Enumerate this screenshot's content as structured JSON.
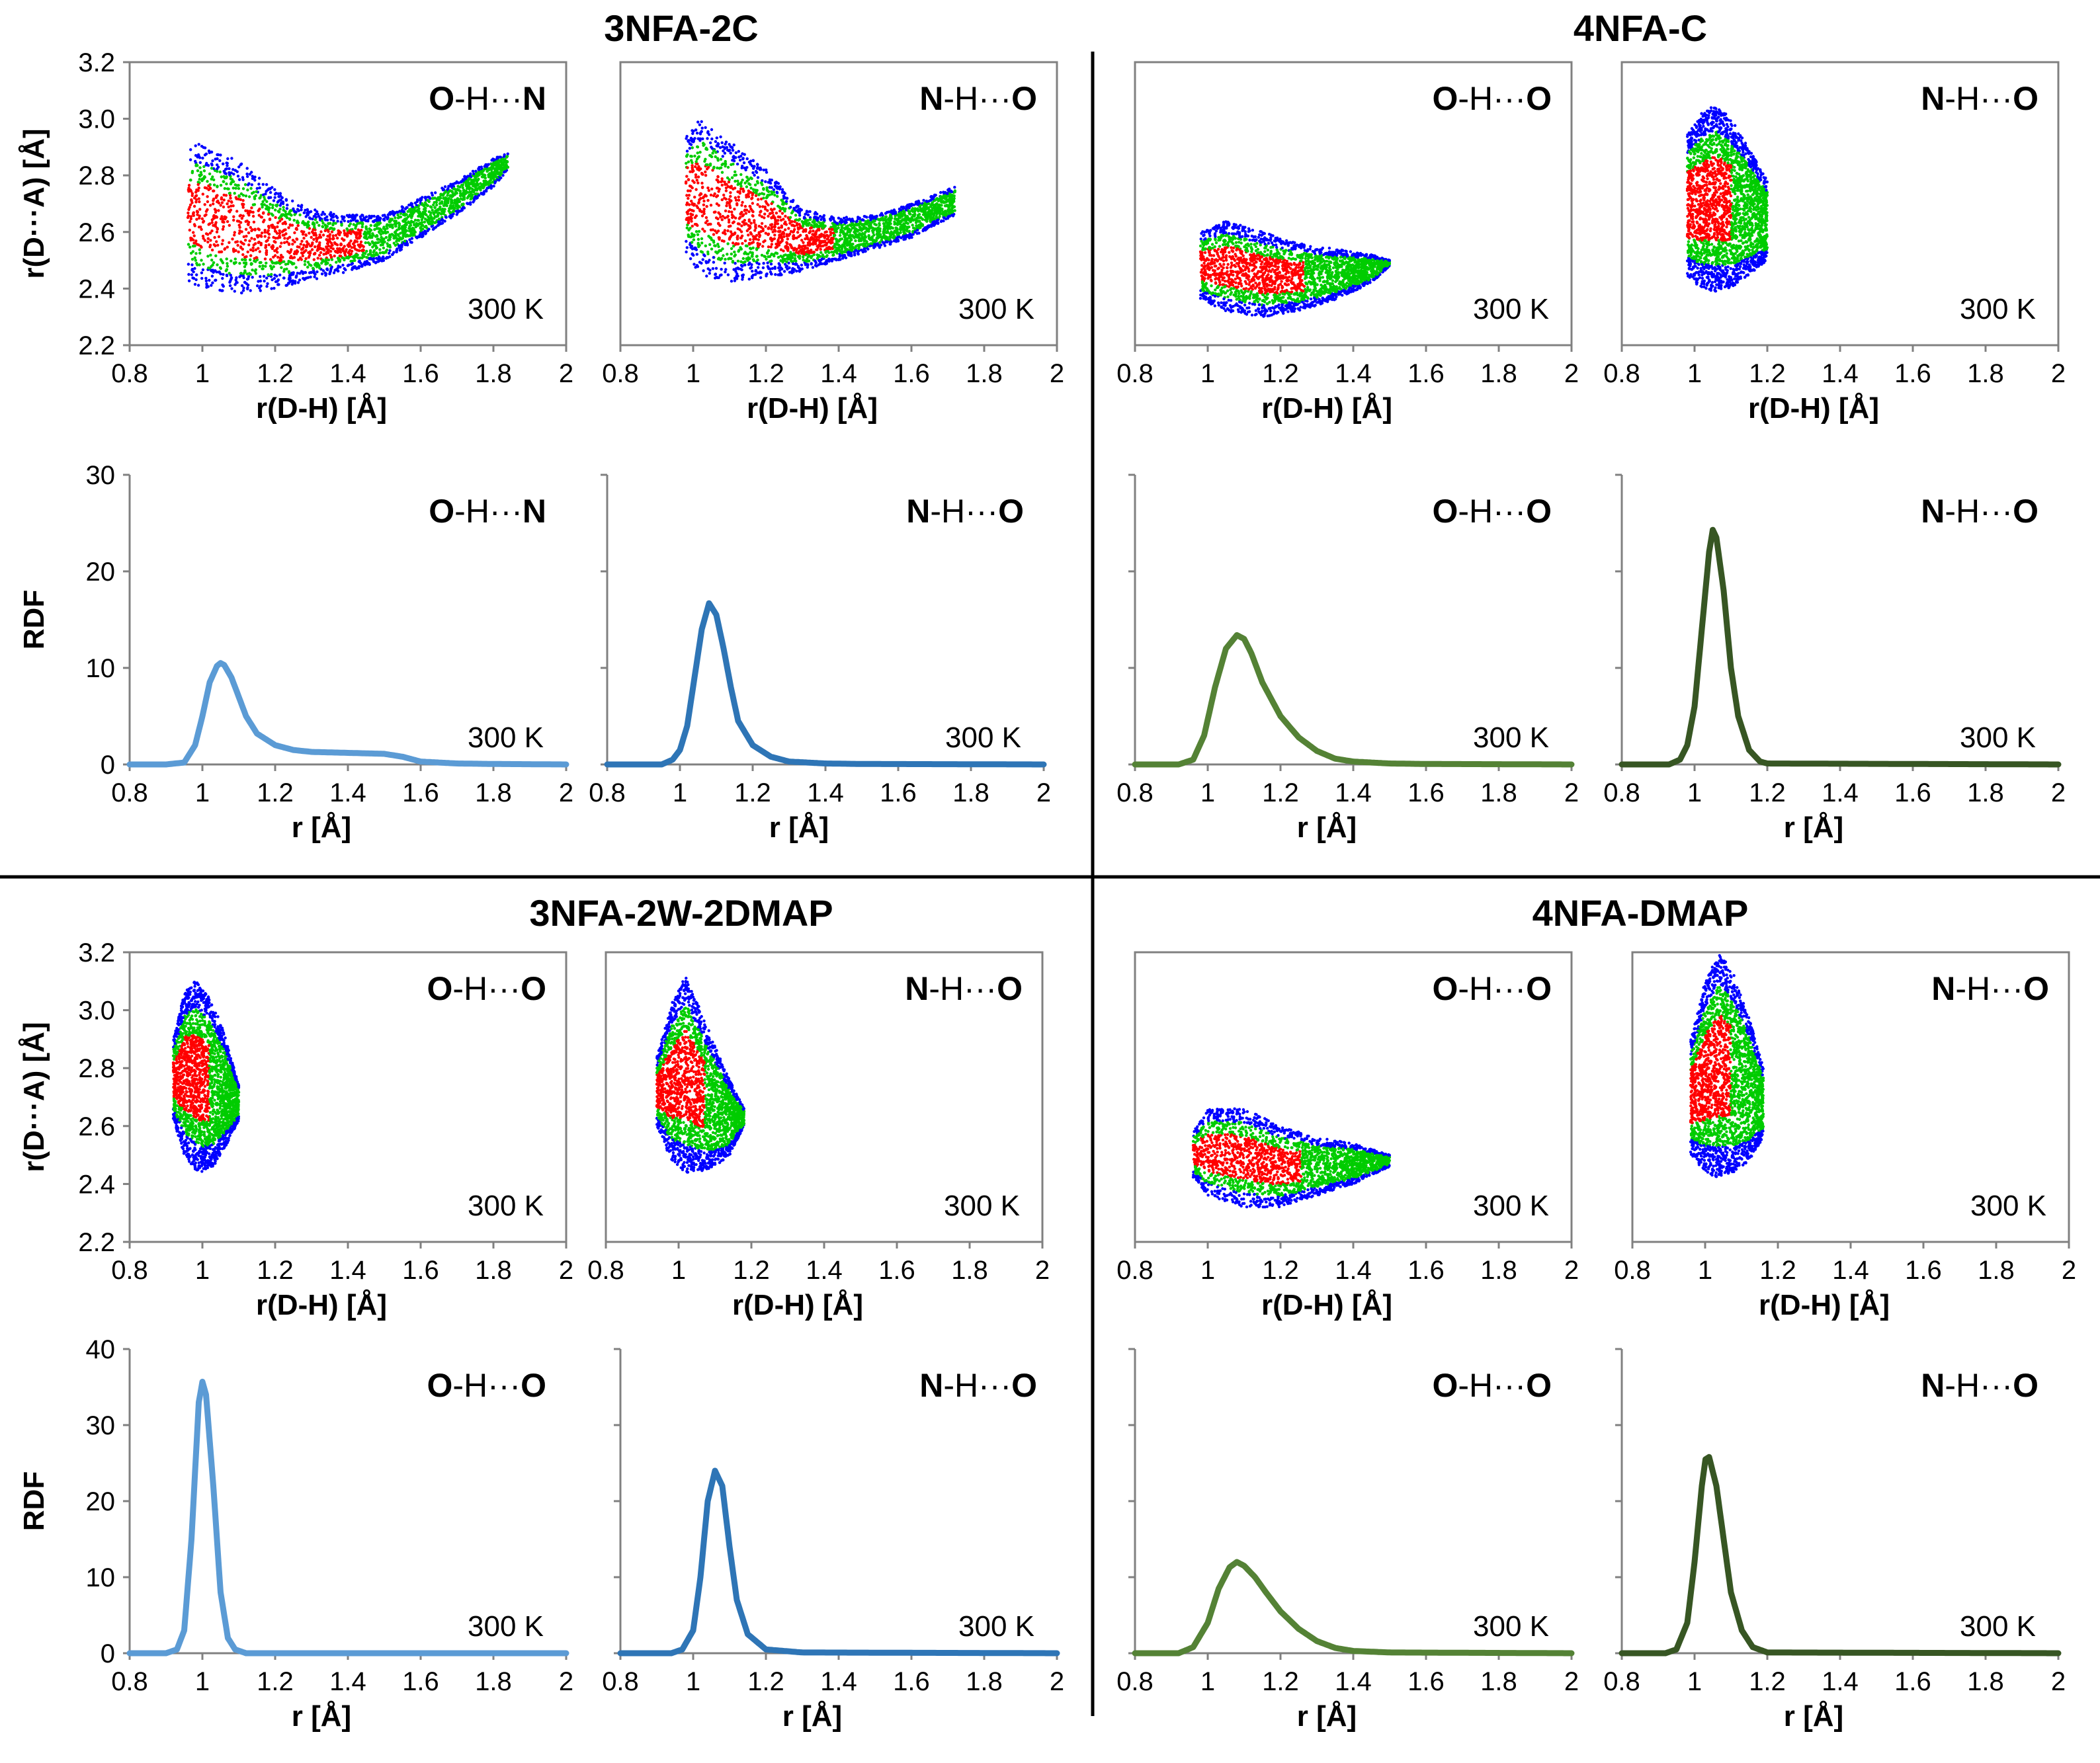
{
  "colors": {
    "rdf_3nfa_oh": "#5b9bd5",
    "rdf_3nfa_nh": "#2e75b6",
    "rdf_4nfa_oh": "#548235",
    "rdf_4nfa_nh": "#375623",
    "scatter_outer": "#0000ff",
    "scatter_mid": "#00cc00",
    "scatter_inner": "#ff0000",
    "axis": "#808080",
    "divider": "#000000"
  },
  "chart_data": [
    {
      "id": "p1",
      "type": "scatter",
      "title": "3NFA-2C",
      "bond_donor": "O",
      "bond_rest": "-H···",
      "bond_acceptor": "N",
      "temp": "300 K",
      "xlabel": "r(D-H) [Å]",
      "ylabel": "r(D···A) [Å]",
      "xlim": [
        0.8,
        2.0
      ],
      "ylim": [
        2.2,
        3.2
      ],
      "xticks": [
        "0.8",
        "1",
        "1.2",
        "1.4",
        "1.6",
        "1.8",
        "2"
      ],
      "yticks": [
        "2.2",
        "2.4",
        "2.6",
        "2.8",
        "3.0",
        "3.2"
      ],
      "series": [
        {
          "name": "outer",
          "color": "#0000ff",
          "x": [
            0.96,
            1.02,
            1.1,
            1.2,
            1.3,
            1.4,
            1.5,
            1.6,
            1.7,
            1.8,
            1.84
          ],
          "y_low": [
            2.42,
            2.4,
            2.38,
            2.4,
            2.43,
            2.46,
            2.5,
            2.58,
            2.66,
            2.76,
            2.82
          ],
          "y_high": [
            2.92,
            2.9,
            2.85,
            2.75,
            2.68,
            2.66,
            2.66,
            2.72,
            2.78,
            2.86,
            2.88
          ]
        }
      ],
      "shown_yticks": true,
      "shown_ylabel": true
    },
    {
      "id": "p2",
      "type": "scatter",
      "title": "",
      "bond_donor": "N",
      "bond_rest": "-H···",
      "bond_acceptor": "O",
      "temp": "300 K",
      "xlabel": "r(D-H) [Å]",
      "ylabel": "",
      "xlim": [
        0.8,
        2.0
      ],
      "ylim": [
        2.2,
        3.2
      ],
      "xticks": [
        "0.8",
        "1",
        "1.2",
        "1.4",
        "1.6",
        "1.8",
        "2"
      ],
      "series": [
        {
          "name": "outer",
          "color": "#0000ff",
          "x": [
            0.98,
            1.02,
            1.1,
            1.2,
            1.3,
            1.4,
            1.5,
            1.6,
            1.72
          ],
          "y_low": [
            2.52,
            2.45,
            2.42,
            2.44,
            2.46,
            2.5,
            2.54,
            2.58,
            2.66
          ],
          "y_high": [
            2.94,
            3.0,
            2.92,
            2.82,
            2.68,
            2.65,
            2.66,
            2.7,
            2.76
          ]
        }
      ]
    },
    {
      "id": "p3",
      "type": "scatter",
      "title": "4NFA-C",
      "bond_donor": "O",
      "bond_rest": "-H···",
      "bond_acceptor": "O",
      "temp": "300 K",
      "xlabel": "r(D-H) [Å]",
      "ylabel": "",
      "xlim": [
        0.8,
        2.0
      ],
      "ylim": [
        2.2,
        3.2
      ],
      "xticks": [
        "0.8",
        "1",
        "1.2",
        "1.4",
        "1.6",
        "1.8",
        "2"
      ],
      "series": [
        {
          "name": "outer",
          "color": "#0000ff",
          "x": [
            0.98,
            1.05,
            1.15,
            1.25,
            1.35,
            1.45,
            1.5
          ],
          "y_low": [
            2.36,
            2.32,
            2.3,
            2.32,
            2.36,
            2.42,
            2.48
          ],
          "y_high": [
            2.6,
            2.64,
            2.6,
            2.56,
            2.54,
            2.52,
            2.5
          ]
        }
      ]
    },
    {
      "id": "p4",
      "type": "scatter",
      "title": "",
      "bond_donor": "N",
      "bond_rest": "-H···",
      "bond_acceptor": "O",
      "temp": "300 K",
      "xlabel": "r(D-H) [Å]",
      "ylabel": "",
      "xlim": [
        0.8,
        2.0
      ],
      "ylim": [
        2.2,
        3.2
      ],
      "xticks": [
        "0.8",
        "1",
        "1.2",
        "1.4",
        "1.6",
        "1.8",
        "2"
      ],
      "series": [
        {
          "name": "outer",
          "color": "#0000ff",
          "x": [
            0.98,
            1.02,
            1.06,
            1.1,
            1.14,
            1.2
          ],
          "y_low": [
            2.44,
            2.4,
            2.39,
            2.4,
            2.44,
            2.5
          ],
          "y_high": [
            2.95,
            3.02,
            3.05,
            3.0,
            2.92,
            2.78
          ]
        }
      ]
    },
    {
      "id": "p5",
      "type": "line",
      "title": "",
      "bond_donor": "O",
      "bond_rest": "-H···",
      "bond_acceptor": "N",
      "temp": "300 K",
      "xlabel": "r [Å]",
      "ylabel": "RDF",
      "xlim": [
        0.8,
        2.0
      ],
      "ylim": [
        0,
        30
      ],
      "xticks": [
        "0.8",
        "1",
        "1.2",
        "1.4",
        "1.6",
        "1.8",
        "2"
      ],
      "yticks": [
        "0",
        "10",
        "20",
        "30"
      ],
      "series": [
        {
          "name": "3NFA-2C O-H···N",
          "color": "#5b9bd5",
          "x": [
            0.8,
            0.9,
            0.95,
            0.98,
            1.0,
            1.02,
            1.04,
            1.05,
            1.06,
            1.08,
            1.1,
            1.12,
            1.15,
            1.2,
            1.25,
            1.3,
            1.4,
            1.5,
            1.55,
            1.6,
            1.7,
            1.8,
            2.0
          ],
          "y": [
            0,
            0,
            0.2,
            2,
            5,
            8.5,
            10.2,
            10.5,
            10.3,
            9,
            7,
            5,
            3.2,
            2,
            1.5,
            1.3,
            1.2,
            1.1,
            0.8,
            0.3,
            0.1,
            0.05,
            0
          ]
        }
      ],
      "shown_yticks": true,
      "shown_ylabel": true
    },
    {
      "id": "p6",
      "type": "line",
      "title": "",
      "bond_donor": "N",
      "bond_rest": "-H···",
      "bond_acceptor": "O",
      "temp": "300 K",
      "xlabel": "r [Å]",
      "ylabel": "",
      "xlim": [
        0.8,
        2.0
      ],
      "ylim": [
        0,
        30
      ],
      "xticks": [
        "0.8",
        "1",
        "1.2",
        "1.4",
        "1.6",
        "1.8",
        "2"
      ],
      "series": [
        {
          "name": "3NFA-2C N-H···O",
          "color": "#2e75b6",
          "x": [
            0.8,
            0.95,
            0.98,
            1.0,
            1.02,
            1.04,
            1.06,
            1.08,
            1.1,
            1.12,
            1.14,
            1.16,
            1.2,
            1.25,
            1.3,
            1.4,
            1.5,
            2.0
          ],
          "y": [
            0,
            0,
            0.5,
            1.5,
            4,
            9,
            14,
            16.7,
            15.5,
            12,
            8,
            4.5,
            2,
            0.8,
            0.3,
            0.1,
            0.05,
            0
          ]
        }
      ]
    },
    {
      "id": "p7",
      "type": "line",
      "title": "",
      "bond_donor": "O",
      "bond_rest": "-H···",
      "bond_acceptor": "O",
      "temp": "300 K",
      "xlabel": "r [Å]",
      "ylabel": "",
      "xlim": [
        0.8,
        2.0
      ],
      "ylim": [
        0,
        30
      ],
      "xticks": [
        "0.8",
        "1",
        "1.2",
        "1.4",
        "1.6",
        "1.8",
        "2"
      ],
      "series": [
        {
          "name": "4NFA-C O-H···O",
          "color": "#548235",
          "x": [
            0.8,
            0.92,
            0.96,
            0.99,
            1.02,
            1.05,
            1.08,
            1.1,
            1.12,
            1.15,
            1.2,
            1.25,
            1.3,
            1.35,
            1.4,
            1.5,
            1.6,
            2.0
          ],
          "y": [
            0,
            0,
            0.5,
            3,
            8,
            12,
            13.4,
            13,
            11.5,
            8.5,
            5,
            2.8,
            1.4,
            0.6,
            0.3,
            0.1,
            0.05,
            0
          ]
        }
      ]
    },
    {
      "id": "p8",
      "type": "line",
      "title": "",
      "bond_donor": "N",
      "bond_rest": "-H···",
      "bond_acceptor": "O",
      "temp": "300 K",
      "xlabel": "r [Å]",
      "ylabel": "",
      "xlim": [
        0.8,
        2.0
      ],
      "ylim": [
        0,
        30
      ],
      "xticks": [
        "0.8",
        "1",
        "1.2",
        "1.4",
        "1.6",
        "1.8",
        "2"
      ],
      "series": [
        {
          "name": "4NFA-C N-H···O",
          "color": "#375623",
          "x": [
            0.8,
            0.93,
            0.96,
            0.98,
            1.0,
            1.02,
            1.04,
            1.05,
            1.06,
            1.08,
            1.1,
            1.12,
            1.15,
            1.18,
            1.2,
            2.0
          ],
          "y": [
            0,
            0,
            0.5,
            2,
            6,
            14,
            22,
            24.3,
            23.5,
            18,
            10,
            5,
            1.5,
            0.3,
            0.1,
            0
          ]
        }
      ]
    },
    {
      "id": "p9",
      "type": "scatter",
      "title": "3NFA-2W-2DMAP",
      "bond_donor": "O",
      "bond_rest": "-H···",
      "bond_acceptor": "O",
      "temp": "300 K",
      "xlabel": "r(D-H) [Å]",
      "ylabel": "r(D···A) [Å]",
      "xlim": [
        0.8,
        2.0
      ],
      "ylim": [
        2.2,
        3.2
      ],
      "xticks": [
        "0.8",
        "1",
        "1.2",
        "1.4",
        "1.6",
        "1.8",
        "2"
      ],
      "yticks": [
        "2.2",
        "2.4",
        "2.6",
        "2.8",
        "3.0",
        "3.2"
      ],
      "series": [
        {
          "name": "outer",
          "color": "#0000ff",
          "x": [
            0.92,
            0.95,
            0.98,
            1.0,
            1.03,
            1.06,
            1.1
          ],
          "y_low": [
            2.62,
            2.5,
            2.45,
            2.44,
            2.46,
            2.52,
            2.62
          ],
          "y_high": [
            2.9,
            3.06,
            3.1,
            3.08,
            3.02,
            2.92,
            2.74
          ]
        }
      ],
      "shown_yticks": true,
      "shown_ylabel": true
    },
    {
      "id": "p10",
      "type": "scatter",
      "title": "",
      "bond_donor": "N",
      "bond_rest": "-H···",
      "bond_acceptor": "O",
      "temp": "300 K",
      "xlabel": "r(D-H) [Å]",
      "ylabel": "",
      "xlim": [
        0.8,
        2.0
      ],
      "ylim": [
        2.2,
        3.2
      ],
      "xticks": [
        "0.8",
        "1",
        "1.2",
        "1.4",
        "1.6",
        "1.8",
        "2"
      ],
      "series": [
        {
          "name": "outer",
          "color": "#0000ff",
          "x": [
            0.94,
            0.98,
            1.02,
            1.06,
            1.1,
            1.14,
            1.18
          ],
          "y_low": [
            2.6,
            2.48,
            2.44,
            2.44,
            2.46,
            2.5,
            2.6
          ],
          "y_high": [
            2.84,
            3.02,
            3.12,
            3.0,
            2.88,
            2.76,
            2.66
          ]
        }
      ]
    },
    {
      "id": "p11",
      "type": "scatter",
      "title": "4NFA-DMAP",
      "bond_donor": "O",
      "bond_rest": "-H···",
      "bond_acceptor": "O",
      "temp": "300 K",
      "xlabel": "r(D-H) [Å]",
      "ylabel": "",
      "xlim": [
        0.8,
        2.0
      ],
      "ylim": [
        2.2,
        3.2
      ],
      "xticks": [
        "0.8",
        "1",
        "1.2",
        "1.4",
        "1.6",
        "1.8",
        "2"
      ],
      "series": [
        {
          "name": "outer",
          "color": "#0000ff",
          "x": [
            0.96,
            1.0,
            1.1,
            1.2,
            1.3,
            1.4,
            1.5
          ],
          "y_low": [
            2.42,
            2.36,
            2.32,
            2.32,
            2.36,
            2.4,
            2.46
          ],
          "y_high": [
            2.58,
            2.66,
            2.66,
            2.6,
            2.56,
            2.54,
            2.5
          ]
        }
      ]
    },
    {
      "id": "p12",
      "type": "scatter",
      "title": "",
      "bond_donor": "N",
      "bond_rest": "-H···",
      "bond_acceptor": "O",
      "temp": "300 K",
      "xlabel": "r(D-H) [Å]",
      "ylabel": "",
      "xlim": [
        0.8,
        2.0
      ],
      "ylim": [
        2.2,
        3.2
      ],
      "xticks": [
        "0.8",
        "1",
        "1.2",
        "1.4",
        "1.6",
        "1.8",
        "2"
      ],
      "series": [
        {
          "name": "outer",
          "color": "#0000ff",
          "x": [
            0.96,
            1.0,
            1.04,
            1.08,
            1.12,
            1.16
          ],
          "y_low": [
            2.5,
            2.44,
            2.42,
            2.44,
            2.48,
            2.56
          ],
          "y_high": [
            2.9,
            3.1,
            3.2,
            3.12,
            2.98,
            2.8
          ]
        }
      ]
    },
    {
      "id": "p13",
      "type": "line",
      "title": "",
      "bond_donor": "O",
      "bond_rest": "-H···",
      "bond_acceptor": "O",
      "temp": "300 K",
      "xlabel": "r [Å]",
      "ylabel": "RDF",
      "xlim": [
        0.8,
        2.0
      ],
      "ylim": [
        0,
        40
      ],
      "xticks": [
        "0.8",
        "1",
        "1.2",
        "1.4",
        "1.6",
        "1.8",
        "2"
      ],
      "yticks": [
        "0",
        "10",
        "20",
        "30",
        "40"
      ],
      "series": [
        {
          "name": "3NFA-2W-2DMAP O-H···O",
          "color": "#5b9bd5",
          "x": [
            0.8,
            0.9,
            0.93,
            0.95,
            0.97,
            0.99,
            1.0,
            1.01,
            1.03,
            1.05,
            1.07,
            1.09,
            1.12,
            2.0
          ],
          "y": [
            0,
            0,
            0.5,
            3,
            15,
            33,
            35.7,
            34,
            22,
            8,
            2,
            0.5,
            0,
            0
          ]
        }
      ],
      "shown_yticks": true,
      "shown_ylabel": true
    },
    {
      "id": "p14",
      "type": "line",
      "title": "",
      "bond_donor": "N",
      "bond_rest": "-H···",
      "bond_acceptor": "O",
      "temp": "300 K",
      "xlabel": "r [Å]",
      "ylabel": "",
      "xlim": [
        0.8,
        2.0
      ],
      "ylim": [
        0,
        40
      ],
      "xticks": [
        "0.8",
        "1",
        "1.2",
        "1.4",
        "1.6",
        "1.8",
        "2"
      ],
      "series": [
        {
          "name": "3NFA-2W-2DMAP N-H···O",
          "color": "#2e75b6",
          "x": [
            0.8,
            0.94,
            0.97,
            1.0,
            1.02,
            1.04,
            1.06,
            1.08,
            1.1,
            1.12,
            1.15,
            1.2,
            1.3,
            2.0
          ],
          "y": [
            0,
            0,
            0.5,
            3,
            10,
            20,
            24,
            22,
            14,
            7,
            2.5,
            0.5,
            0.1,
            0
          ]
        }
      ]
    },
    {
      "id": "p15",
      "type": "line",
      "title": "",
      "bond_donor": "O",
      "bond_rest": "-H···",
      "bond_acceptor": "O",
      "temp": "300 K",
      "xlabel": "r [Å]",
      "ylabel": "",
      "xlim": [
        0.8,
        2.0
      ],
      "ylim": [
        0,
        40
      ],
      "xticks": [
        "0.8",
        "1",
        "1.2",
        "1.4",
        "1.6",
        "1.8",
        "2"
      ],
      "series": [
        {
          "name": "4NFA-DMAP O-H···O",
          "color": "#548235",
          "x": [
            0.8,
            0.92,
            0.96,
            1.0,
            1.03,
            1.06,
            1.08,
            1.1,
            1.13,
            1.16,
            1.2,
            1.25,
            1.3,
            1.35,
            1.4,
            1.5,
            2.0
          ],
          "y": [
            0,
            0,
            0.8,
            4,
            8.5,
            11.3,
            12,
            11.5,
            10,
            8,
            5.5,
            3.2,
            1.6,
            0.7,
            0.3,
            0.1,
            0
          ]
        }
      ]
    },
    {
      "id": "p16",
      "type": "line",
      "title": "",
      "bond_donor": "N",
      "bond_rest": "-H···",
      "bond_acceptor": "O",
      "temp": "300 K",
      "xlabel": "r [Å]",
      "ylabel": "",
      "xlim": [
        0.8,
        2.0
      ],
      "ylim": [
        0,
        40
      ],
      "xticks": [
        "0.8",
        "1",
        "1.2",
        "1.4",
        "1.6",
        "1.8",
        "2"
      ],
      "series": [
        {
          "name": "4NFA-DMAP N-H···O",
          "color": "#375623",
          "x": [
            0.8,
            0.92,
            0.95,
            0.98,
            1.0,
            1.02,
            1.03,
            1.04,
            1.06,
            1.08,
            1.1,
            1.13,
            1.16,
            1.2,
            2.0
          ],
          "y": [
            0,
            0,
            0.5,
            4,
            12,
            22,
            25.5,
            25.8,
            22,
            15,
            8,
            3,
            0.8,
            0.1,
            0
          ]
        }
      ]
    }
  ]
}
